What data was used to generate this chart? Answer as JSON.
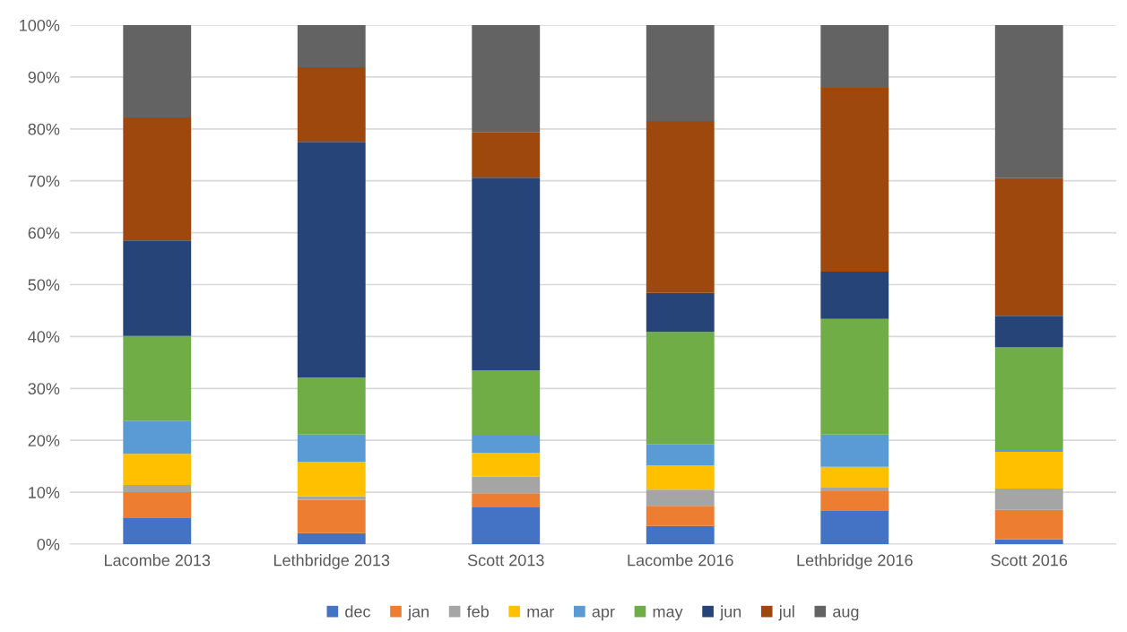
{
  "chart_data": {
    "type": "bar",
    "stacked": true,
    "categories": [
      "Lacombe 2013",
      "Lethbridge 2013",
      "Scott 2013",
      "Lacombe 2016",
      "Lethbridge 2016",
      "Scott 2016"
    ],
    "series": [
      {
        "name": "dec",
        "color": "#4472c4",
        "values": [
          5.0,
          2.1,
          7.1,
          3.5,
          6.4,
          0.9
        ]
      },
      {
        "name": "jan",
        "color": "#ed7d31",
        "values": [
          5.0,
          6.4,
          2.7,
          3.9,
          3.8,
          5.7
        ]
      },
      {
        "name": "feb",
        "color": "#a5a5a5",
        "values": [
          1.4,
          0.7,
          3.2,
          3.1,
          0.7,
          4.1
        ]
      },
      {
        "name": "mar",
        "color": "#ffc000",
        "values": [
          6.0,
          6.7,
          4.6,
          4.7,
          4.0,
          7.1
        ]
      },
      {
        "name": "apr",
        "color": "#5b9bd5",
        "values": [
          6.3,
          5.2,
          3.3,
          4.1,
          6.2,
          0.5
        ]
      },
      {
        "name": "may",
        "color": "#70ad47",
        "values": [
          16.4,
          11.0,
          12.6,
          21.6,
          22.3,
          19.6
        ]
      },
      {
        "name": "jun",
        "color": "#264478",
        "values": [
          18.4,
          45.4,
          37.1,
          7.5,
          9.1,
          6.1
        ]
      },
      {
        "name": "jul",
        "color": "#9e480e",
        "values": [
          23.7,
          14.4,
          8.8,
          33.1,
          35.4,
          26.5
        ]
      },
      {
        "name": "aug",
        "color": "#636363",
        "values": [
          17.8,
          8.1,
          20.6,
          18.5,
          12.1,
          29.5
        ]
      }
    ],
    "ylim": [
      0,
      100
    ],
    "yticks": [
      {
        "value": 0,
        "label": "0%"
      },
      {
        "value": 10,
        "label": "10%"
      },
      {
        "value": 20,
        "label": "20%"
      },
      {
        "value": 30,
        "label": "30%"
      },
      {
        "value": 40,
        "label": "40%"
      },
      {
        "value": 50,
        "label": "50%"
      },
      {
        "value": 60,
        "label": "60%"
      },
      {
        "value": 70,
        "label": "70%"
      },
      {
        "value": 80,
        "label": "80%"
      },
      {
        "value": 90,
        "label": "90%"
      },
      {
        "value": 100,
        "label": "100%"
      }
    ],
    "grid": "y",
    "legend": "bottom"
  }
}
